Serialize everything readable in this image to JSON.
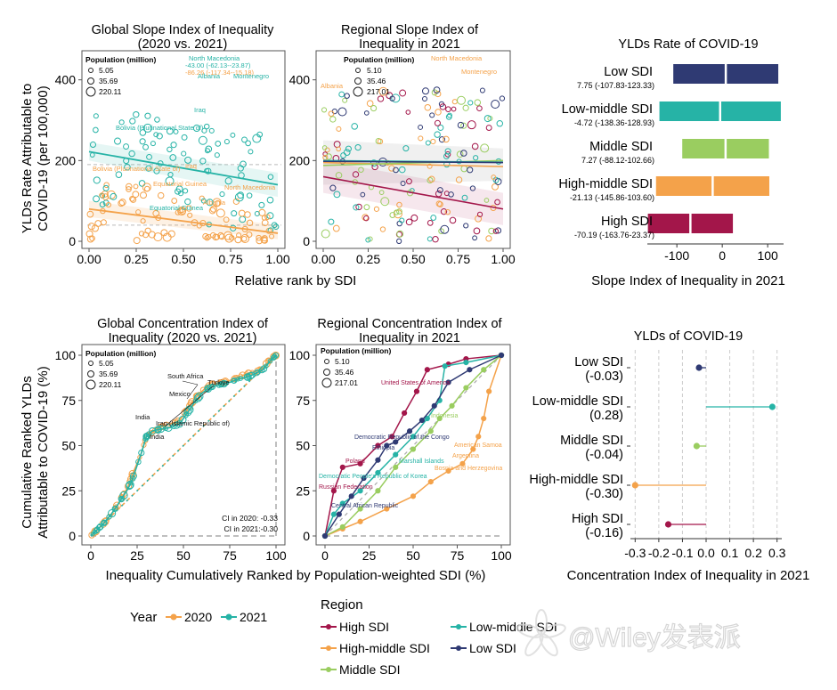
{
  "colors": {
    "y2020": "#f4a24a",
    "y2021": "#26b3a6",
    "high": "#a3164a",
    "high_middle": "#f4a24a",
    "middle": "#9acd60",
    "low_middle": "#26b3a6",
    "low": "#2f3a73",
    "panel_border": "#555555",
    "grid": "#cccccc"
  },
  "labels": {
    "y_axis_top": "YLDs Rate Attributable to",
    "y_axis_top_2": "COVID-19 (per 100,000)",
    "x_axis_top": "Relative rank by SDI",
    "y_axis_bottom": "Cumulative Ranked YLDs",
    "y_axis_bottom_2": "Attributable to COVID-19 (%)",
    "x_axis_bottom": "Inequality Cumulatively Ranked by Population-weighted SDI (%)",
    "legend_year_title": "Year",
    "legend_year_2020": "2020",
    "legend_year_2021": "2021",
    "legend_region_title": "Region",
    "legend_region_high": "High SDI",
    "legend_region_high_middle": "High-middle SDI",
    "legend_region_middle": "Middle SDI",
    "legend_region_low_middle": "Low-middle SDI",
    "legend_region_low": "Low SDI",
    "watermark": "@Wiley发表派"
  },
  "chart_data": [
    {
      "id": "global_sii",
      "type": "scatter",
      "title_l1": "Global Slope Index of Inequality",
      "title_l2": "(2020 vs. 2021)",
      "xlabel": "Relative rank by SDI",
      "ylabel": "YLDs Rate Attributable to COVID-19 (per 100,000)",
      "xlim": [
        0,
        1
      ],
      "ylim": [
        0,
        450
      ],
      "xticks": [
        "0.00",
        "0.25",
        "0.50",
        "0.75",
        "1.00"
      ],
      "yticks": [
        "0",
        "200",
        "400"
      ],
      "pop_legend_title": "Population (million)",
      "pop_legend": [
        "5.05",
        "35.69",
        "220.11"
      ],
      "fit_2020": [
        [
          0,
          80
        ],
        [
          1,
          20
        ]
      ],
      "fit_2021": [
        [
          0,
          222
        ],
        [
          1,
          140
        ]
      ],
      "annotations": [
        {
          "text": "North Macedonia",
          "series": "2021"
        },
        {
          "text": "-43.00 (-62.13--23.87)",
          "series": "2021"
        },
        {
          "text": "-86.26 (-117.34--15.18)",
          "series": "2021"
        },
        {
          "text": "Albania",
          "series": "2021"
        },
        {
          "text": "Montenegro",
          "series": "2021"
        },
        {
          "text": "Iraq",
          "series": "2021"
        },
        {
          "text": "Bolivia (Plurinational State of)",
          "series": "2021"
        },
        {
          "text": "Equatorial Guinea",
          "series": "2020"
        },
        {
          "text": "Iraq",
          "series": "2020"
        },
        {
          "text": "Equatorial Guinea",
          "series": "2021"
        },
        {
          "text": "Bolivia (Plurinational State of)",
          "series": "2020"
        },
        {
          "text": "North Macedonia",
          "series": "2020"
        },
        {
          "text": "Albania",
          "series": "2020"
        }
      ]
    },
    {
      "id": "regional_sii",
      "type": "scatter",
      "title_l1": "Regional Slope Index of",
      "title_l2": "Inequality in 2021",
      "xlim": [
        0,
        1
      ],
      "ylim": [
        0,
        450
      ],
      "xticks": [
        "0.00",
        "0.25",
        "0.50",
        "0.75",
        "1.00"
      ],
      "yticks": [
        "0",
        "200",
        "400"
      ],
      "pop_legend_title": "Population (million)",
      "pop_legend": [
        "5.10",
        "35.46",
        "217.01"
      ],
      "fit_lines": [
        {
          "region": "high",
          "from": [
            0,
            160
          ],
          "to": [
            1,
            80
          ]
        },
        {
          "region": "high_middle",
          "from": [
            0,
            195
          ],
          "to": [
            1,
            185
          ]
        },
        {
          "region": "middle",
          "from": [
            0,
            188
          ],
          "to": [
            1,
            200
          ]
        },
        {
          "region": "low_middle",
          "from": [
            0,
            200
          ],
          "to": [
            1,
            196
          ]
        },
        {
          "region": "low",
          "from": [
            0,
            198
          ],
          "to": [
            1,
            195
          ]
        }
      ],
      "annotations": [
        {
          "text": "North Macedonia"
        },
        {
          "text": "Albania"
        },
        {
          "text": "Montenegro"
        }
      ]
    },
    {
      "id": "sii_bar",
      "type": "bar",
      "title": "YLDs Rate of COVID-19",
      "xlabel": "Slope Index of Inequality in 2021",
      "xlim": [
        -165,
        135
      ],
      "xticks": [
        -100,
        0,
        100
      ],
      "xtick_labels": [
        "-100",
        "0",
        "100"
      ],
      "categories": [
        "Low SDI",
        "Low-middle SDI",
        "Middle SDI",
        "High-middle SDI",
        "High SDI"
      ],
      "ci_labels": [
        "7.75 (-107.83-123.33)",
        "-4.72 (-138.36-128.93)",
        "7.27 (-88.12-102.66)",
        "-21.13 (-145.86-103.60)",
        "-70.19 (-163.76-23.37)"
      ],
      "values": [
        7.75,
        -4.72,
        7.27,
        -21.13,
        -70.19
      ],
      "lower": [
        -107.83,
        -138.36,
        -88.12,
        -145.86,
        -163.76
      ],
      "upper": [
        123.33,
        128.93,
        102.66,
        103.6,
        23.37
      ],
      "region_keys": [
        "low",
        "low_middle",
        "middle",
        "high_middle",
        "high"
      ]
    },
    {
      "id": "global_ci",
      "type": "line",
      "title_l1": "Global Concentration Index of",
      "title_l2": "Inequality (2020 vs. 2021)",
      "xlim": [
        0,
        100
      ],
      "ylim": [
        0,
        100
      ],
      "xticks": [
        "0",
        "25",
        "50",
        "75",
        "100"
      ],
      "yticks": [
        "0",
        "25",
        "50",
        "75",
        "100"
      ],
      "pop_legend_title": "Population (million)",
      "pop_legend": [
        "5.05",
        "35.69",
        "220.11"
      ],
      "annotations": [
        "South Africa",
        "Türkiye",
        "Mexico",
        "India",
        "India",
        "Iran (Islamic Republic of)"
      ],
      "ci_text_2020": "CI in 2020: -0.33",
      "ci_text_2021": "CI in 2021:-0.30",
      "curve_2020": [
        [
          0,
          0
        ],
        [
          3,
          3
        ],
        [
          7,
          7
        ],
        [
          11,
          12
        ],
        [
          15,
          18
        ],
        [
          20,
          27
        ],
        [
          22,
          33
        ],
        [
          27,
          45
        ],
        [
          30,
          55
        ],
        [
          33,
          57
        ],
        [
          37,
          60
        ],
        [
          43,
          62
        ],
        [
          48,
          64
        ],
        [
          52,
          70
        ],
        [
          56,
          76
        ],
        [
          60,
          80
        ],
        [
          64,
          84
        ],
        [
          67,
          84
        ],
        [
          71,
          85
        ],
        [
          75,
          86
        ],
        [
          80,
          88
        ],
        [
          85,
          90
        ],
        [
          89,
          91
        ],
        [
          93,
          93
        ],
        [
          97,
          98
        ],
        [
          100,
          100
        ]
      ],
      "curve_2021": [
        [
          0,
          0
        ],
        [
          3,
          3
        ],
        [
          7,
          7
        ],
        [
          11,
          12
        ],
        [
          15,
          18
        ],
        [
          20,
          26
        ],
        [
          22,
          30
        ],
        [
          27,
          45
        ],
        [
          30,
          55
        ],
        [
          33,
          58
        ],
        [
          37,
          59
        ],
        [
          43,
          60
        ],
        [
          48,
          62
        ],
        [
          52,
          68
        ],
        [
          56,
          74
        ],
        [
          60,
          79
        ],
        [
          64,
          82
        ],
        [
          67,
          83
        ],
        [
          71,
          84
        ],
        [
          75,
          85
        ],
        [
          80,
          87
        ],
        [
          85,
          88
        ],
        [
          89,
          90
        ],
        [
          93,
          92
        ],
        [
          97,
          97
        ],
        [
          100,
          100
        ]
      ]
    },
    {
      "id": "regional_ci",
      "type": "line",
      "title_l1": "Regional Concentration Index of",
      "title_l2": "Inequality in 2021",
      "xlim": [
        0,
        100
      ],
      "ylim": [
        0,
        100
      ],
      "xticks": [
        "0",
        "25",
        "50",
        "75",
        "100"
      ],
      "yticks": [
        "0",
        "25",
        "50",
        "75",
        "100"
      ],
      "pop_legend_title": "Population (million)",
      "pop_legend": [
        "5.10",
        "35.46",
        "217.01"
      ],
      "annotations": [
        {
          "text": "United States of America",
          "region": "high"
        },
        {
          "text": "Indonesia",
          "region": "middle"
        },
        {
          "text": "Democratic Republic of the Congo",
          "region": "low"
        },
        {
          "text": "Ethiopia",
          "region": "low"
        },
        {
          "text": "American Samoa",
          "region": "high_middle"
        },
        {
          "text": "Poland",
          "region": "high"
        },
        {
          "text": "Marshall Islands",
          "region": "low_middle"
        },
        {
          "text": "Argentina",
          "region": "high_middle"
        },
        {
          "text": "Bosnia and Herzegovina",
          "region": "high_middle"
        },
        {
          "text": "Democratic People's Republic of Korea",
          "region": "low_middle"
        },
        {
          "text": "Russian Federation",
          "region": "high"
        },
        {
          "text": "Central African Republic",
          "region": "low"
        }
      ],
      "curves": [
        {
          "region": "high",
          "points": [
            [
              0,
              0
            ],
            [
              5,
              25
            ],
            [
              10,
              38
            ],
            [
              20,
              40
            ],
            [
              30,
              50
            ],
            [
              38,
              55
            ],
            [
              45,
              68
            ],
            [
              52,
              80
            ],
            [
              58,
              92
            ],
            [
              70,
              95
            ],
            [
              80,
              98
            ],
            [
              100,
              100
            ]
          ]
        },
        {
          "region": "high_middle",
          "points": [
            [
              0,
              0
            ],
            [
              10,
              4
            ],
            [
              20,
              8
            ],
            [
              35,
              15
            ],
            [
              50,
              22
            ],
            [
              60,
              30
            ],
            [
              70,
              36
            ],
            [
              78,
              40
            ],
            [
              84,
              48
            ],
            [
              87,
              55
            ],
            [
              90,
              65
            ],
            [
              93,
              80
            ],
            [
              100,
              100
            ]
          ]
        },
        {
          "region": "middle",
          "points": [
            [
              0,
              0
            ],
            [
              10,
              5
            ],
            [
              20,
              15
            ],
            [
              30,
              25
            ],
            [
              40,
              38
            ],
            [
              50,
              48
            ],
            [
              60,
              58
            ],
            [
              65,
              65
            ],
            [
              72,
              72
            ],
            [
              80,
              82
            ],
            [
              90,
              92
            ],
            [
              100,
              100
            ]
          ]
        },
        {
          "region": "low_middle",
          "points": [
            [
              0,
              0
            ],
            [
              5,
              12
            ],
            [
              10,
              18
            ],
            [
              20,
              25
            ],
            [
              30,
              35
            ],
            [
              40,
              45
            ],
            [
              50,
              55
            ],
            [
              58,
              65
            ],
            [
              65,
              75
            ],
            [
              68,
              94
            ],
            [
              80,
              96
            ],
            [
              100,
              100
            ]
          ]
        },
        {
          "region": "low",
          "points": [
            [
              0,
              0
            ],
            [
              8,
              12
            ],
            [
              15,
              22
            ],
            [
              22,
              32
            ],
            [
              30,
              42
            ],
            [
              35,
              50
            ],
            [
              40,
              52
            ],
            [
              48,
              58
            ],
            [
              55,
              64
            ],
            [
              62,
              72
            ],
            [
              70,
              85
            ],
            [
              82,
              92
            ],
            [
              100,
              100
            ]
          ]
        }
      ]
    },
    {
      "id": "ci_lollipop",
      "type": "scatter",
      "title": "YLDs of COVID-19",
      "xlabel": "Concentration Index of Inequality in 2021",
      "xlim": [
        -0.32,
        0.32
      ],
      "xticks": [
        -0.3,
        -0.2,
        -0.1,
        0.0,
        0.1,
        0.2,
        0.3
      ],
      "xtick_labels": [
        "-0.3",
        "-0.2",
        "-0.1",
        "0.0",
        "0.1",
        "0.2",
        "0.3"
      ],
      "categories": [
        "Low SDI",
        "Low-middle SDI",
        "Middle SDI",
        "High-middle SDI",
        "High SDI"
      ],
      "value_labels": [
        "(-0.03)",
        "(0.28)",
        "(-0.04)",
        "(-0.30)",
        "(-0.16)"
      ],
      "values": [
        -0.03,
        0.28,
        -0.04,
        -0.3,
        -0.16
      ],
      "region_keys": [
        "low",
        "low_middle",
        "middle",
        "high_middle",
        "high"
      ]
    }
  ]
}
